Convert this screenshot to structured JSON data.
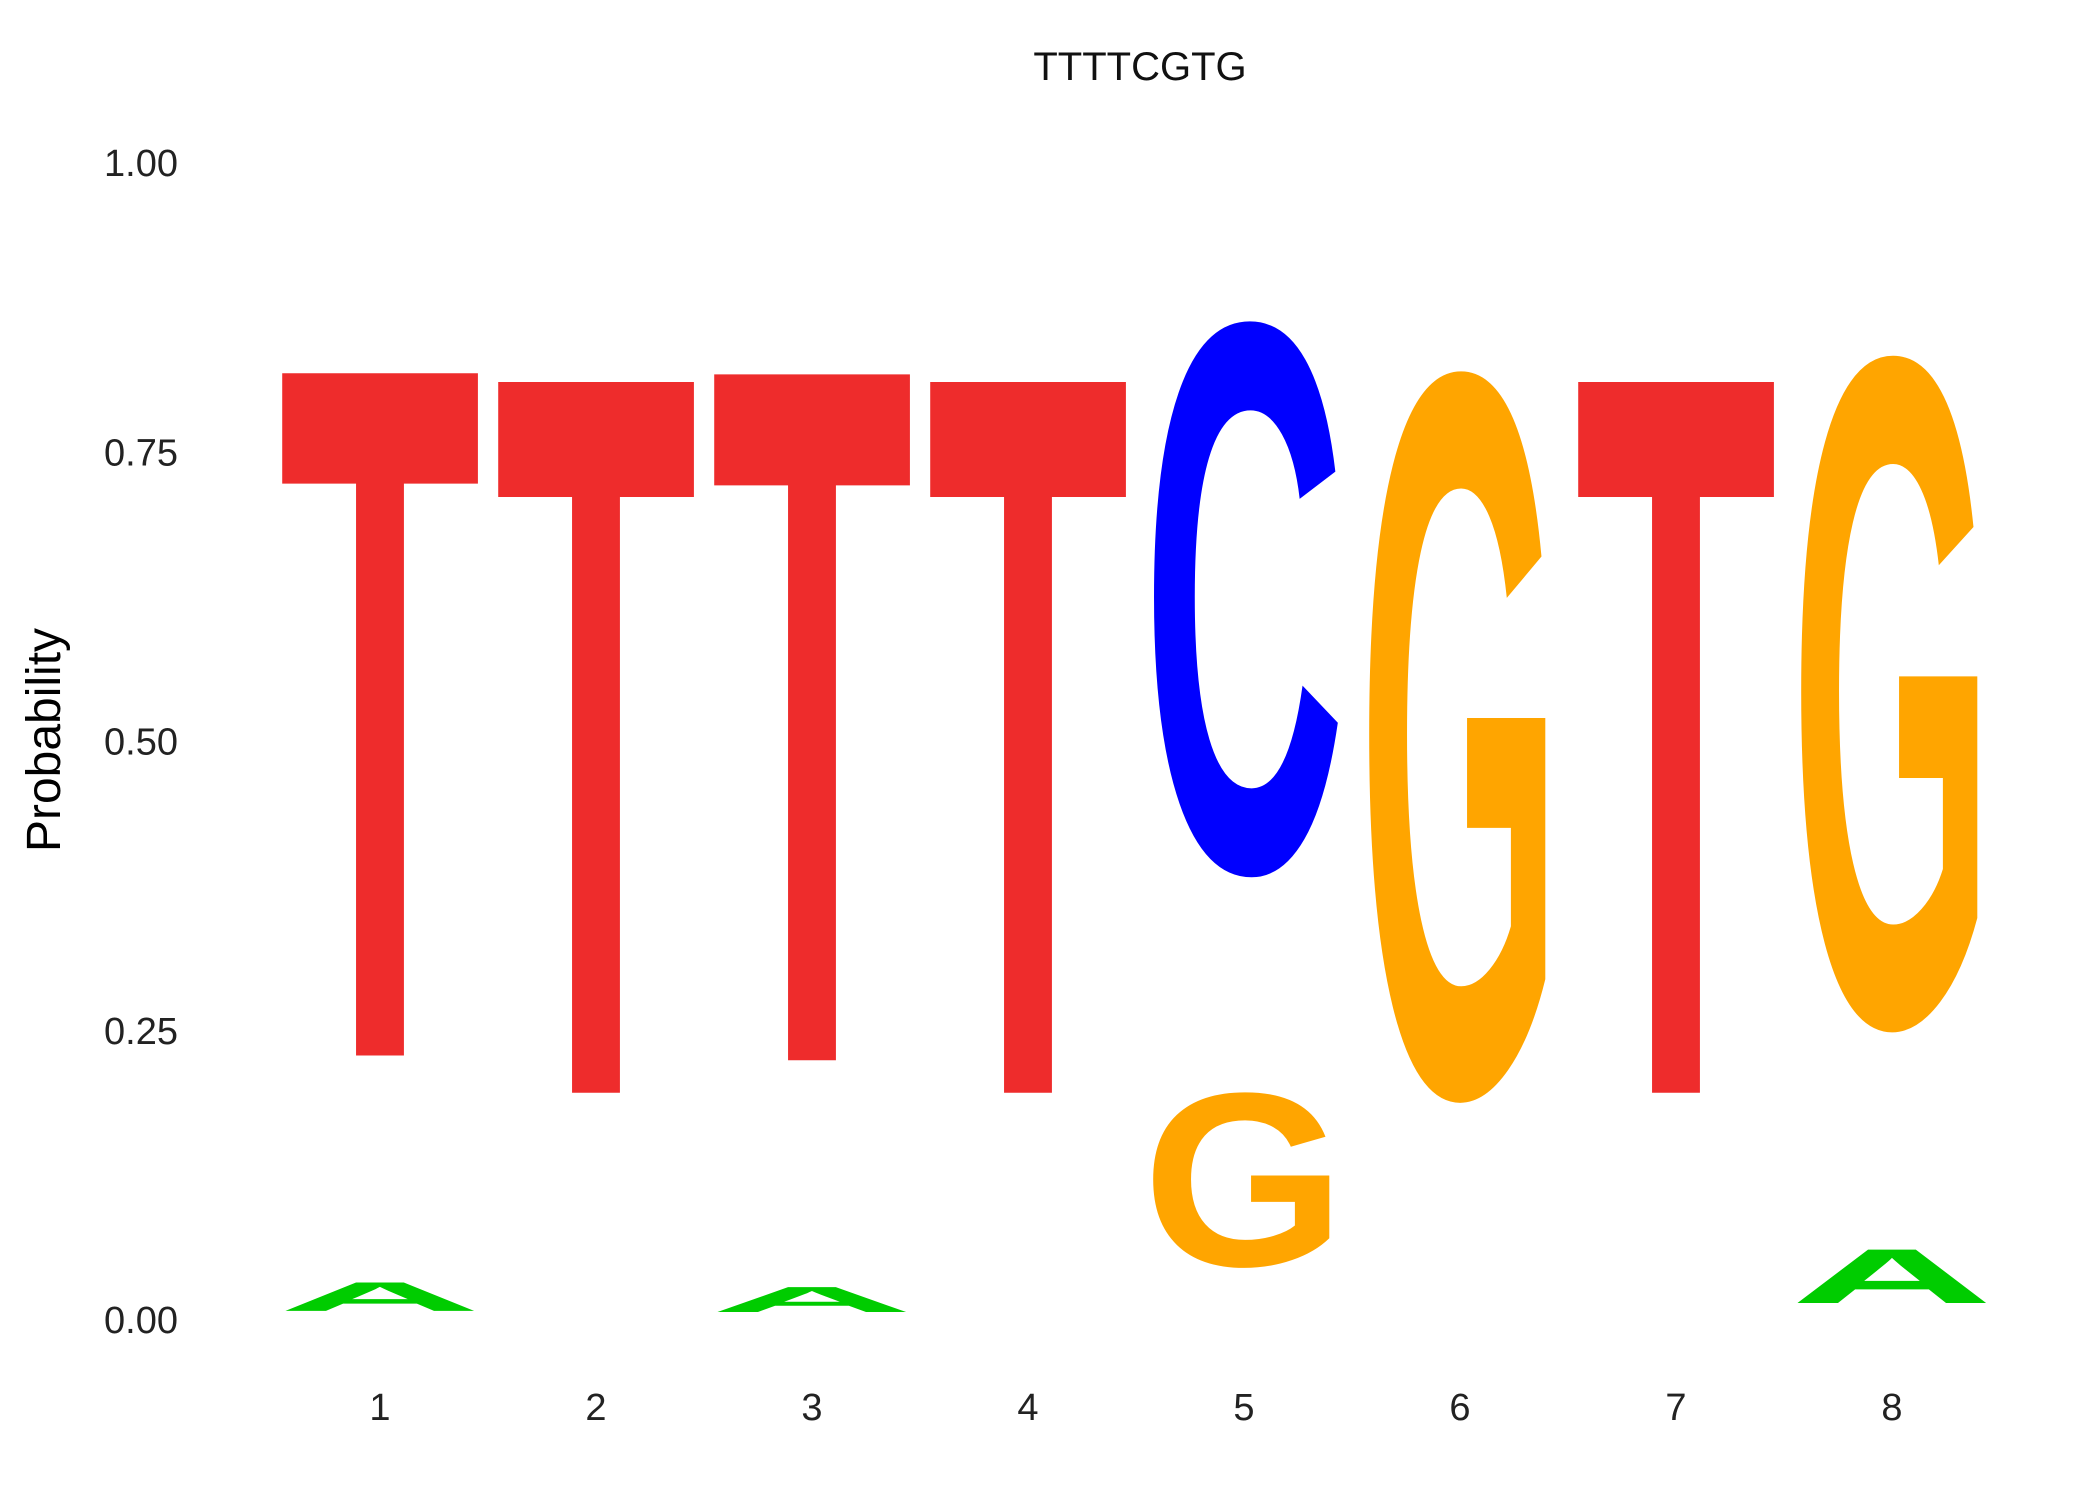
{
  "chart_data": {
    "type": "sequence-logo",
    "title": "TTTTCGTG",
    "xlabel": "",
    "ylabel": "Probability",
    "ylim": [
      0,
      1
    ],
    "y_ticks": [
      "0.00",
      "0.25",
      "0.50",
      "0.75",
      "1.00"
    ],
    "y_tick_values": [
      0,
      0.25,
      0.5,
      0.75,
      1.0
    ],
    "x_ticks": [
      "1",
      "2",
      "3",
      "4",
      "5",
      "6",
      "7",
      "8"
    ],
    "colors": {
      "A": "#00cc00",
      "C": "#0000ff",
      "G": "#ffa500",
      "T": "#ee2c2c"
    },
    "positions": [
      {
        "position": "1",
        "letters": [
          {
            "base": "A",
            "prob": 0.04
          },
          {
            "base": "T",
            "prob": 0.96
          }
        ]
      },
      {
        "position": "2",
        "letters": [
          {
            "base": "T",
            "prob": 1.0
          }
        ]
      },
      {
        "position": "3",
        "letters": [
          {
            "base": "A",
            "prob": 0.035
          },
          {
            "base": "T",
            "prob": 0.965
          }
        ]
      },
      {
        "position": "4",
        "letters": [
          {
            "base": "T",
            "prob": 1.0
          }
        ]
      },
      {
        "position": "5",
        "letters": [
          {
            "base": "G",
            "prob": 0.24
          },
          {
            "base": "C",
            "prob": 0.76
          }
        ]
      },
      {
        "position": "6",
        "letters": [
          {
            "base": "G",
            "prob": 1.0
          }
        ]
      },
      {
        "position": "7",
        "letters": [
          {
            "base": "T",
            "prob": 1.0
          }
        ]
      },
      {
        "position": "8",
        "letters": [
          {
            "base": "A",
            "prob": 0.075
          },
          {
            "base": "G",
            "prob": 0.925
          }
        ]
      }
    ]
  }
}
